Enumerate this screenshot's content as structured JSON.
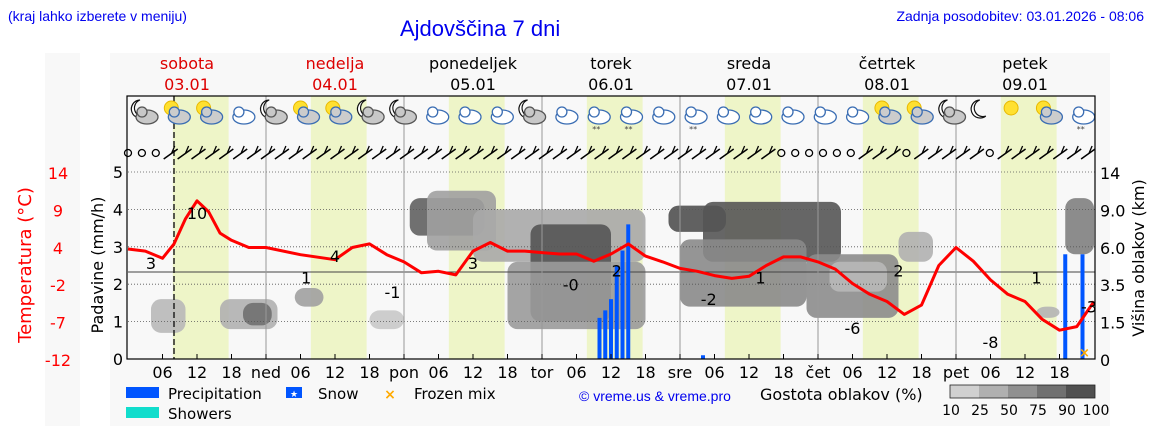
{
  "header": {
    "region_hint": "(kraj lahko izberete v meniju)",
    "title": "Ajdovščina 7 dni",
    "last_update": "Zadnja posodobitev: 03.01.2026 - 08:06"
  },
  "colors": {
    "link_blue": "#0000ee",
    "weekend_red": "#dd0000",
    "temperature": "#ff0000",
    "precipitation": "#0055ff",
    "showers": "#11ddcc",
    "frozen_mix": "#ffaa00",
    "daylight": "#eef5c8",
    "panel_bg": "#f8f8f8"
  },
  "days": [
    {
      "name": "sobota",
      "date": "03.01",
      "weekend": true,
      "short": ""
    },
    {
      "name": "nedelja",
      "date": "04.01",
      "weekend": true,
      "short": "ned"
    },
    {
      "name": "ponedeljek",
      "date": "05.01",
      "weekend": false,
      "short": "pon"
    },
    {
      "name": "torek",
      "date": "06.01",
      "weekend": false,
      "short": "tor"
    },
    {
      "name": "sreda",
      "date": "07.01",
      "weekend": false,
      "short": "sre"
    },
    {
      "name": "četrtek",
      "date": "08.01",
      "weekend": false,
      "short": "čet"
    },
    {
      "name": "petek",
      "date": "09.01",
      "weekend": false,
      "short": "pet"
    }
  ],
  "weather_icons": [
    "night-cloudy",
    "sun-cloud",
    "sun-cloud",
    "cloudy",
    "night-cloudy",
    "sun-cloud",
    "sun-cloud",
    "night-partly",
    "night-cloudy",
    "cloudy",
    "cloudy",
    "cloudy",
    "night-cloudy",
    "cloudy",
    "cloudy-snow",
    "cloudy-snow",
    "cloudy",
    "cloudy-snow",
    "cloudy",
    "cloudy",
    "cloudy",
    "cloudy",
    "cloudy",
    "sun-cloud",
    "sun-cloud",
    "night-cloudy",
    "night-clear",
    "sun",
    "sun-cloud",
    "cloudy-snow"
  ],
  "chart_data": {
    "type": "line",
    "title": "Ajdovščina 7 dni",
    "xlabel": "",
    "x_ticks": [
      "06",
      "12",
      "18",
      "ned",
      "06",
      "12",
      "18",
      "pon",
      "06",
      "12",
      "18",
      "tor",
      "06",
      "12",
      "18",
      "sre",
      "06",
      "12",
      "18",
      "čet",
      "06",
      "12",
      "18",
      "pet",
      "06",
      "12",
      "18"
    ],
    "left_axis_outer": {
      "label": "Temperatura (°C)",
      "ticks": [
        14,
        9,
        4,
        -2,
        -7,
        -12
      ]
    },
    "left_axis_inner": {
      "label": "Padavine (mm/h)",
      "ticks": [
        5,
        4,
        3,
        2,
        1,
        0
      ],
      "ylim": [
        0,
        5
      ]
    },
    "right_axis": {
      "label": "Višina oblakov (km)",
      "ticks": [
        "14",
        "9.0",
        "6.0",
        "3.5",
        "1.5",
        "0"
      ]
    },
    "current_time_marker_hour": 8,
    "series": [
      {
        "name": "Temperatura",
        "unit": "°C",
        "hours": [
          0,
          3,
          6,
          8,
          10,
          12,
          14,
          16,
          18,
          21,
          24,
          30,
          36,
          39,
          42,
          45,
          48,
          51,
          54,
          57,
          60,
          63,
          66,
          69,
          72,
          75,
          78,
          81,
          84,
          87,
          90,
          93,
          96,
          99,
          102,
          105,
          108,
          111,
          114,
          117,
          120,
          123,
          126,
          129,
          132,
          135,
          138,
          141,
          144,
          147,
          150,
          153,
          156,
          159,
          162,
          165,
          168
        ],
        "values": [
          3.3,
          3,
          2,
          4,
          7.5,
          10,
          8.5,
          5.5,
          4.5,
          3.5,
          3.5,
          2.5,
          1.8,
          3.5,
          4,
          2.5,
          1.5,
          0,
          0.2,
          -0.3,
          3,
          4.2,
          3,
          3,
          2.8,
          2.6,
          2.6,
          1.6,
          2.6,
          4,
          2.3,
          1.5,
          0.6,
          0.2,
          -0.4,
          -0.8,
          -0.5,
          1,
          2.2,
          2.2,
          1.5,
          0.5,
          -1.5,
          -3,
          -4,
          -5.8,
          -4.5,
          1,
          3.5,
          1.6,
          -1,
          -3,
          -4,
          -6.5,
          -8,
          -7.5,
          -4
        ]
      },
      {
        "name": "Padavine",
        "unit": "mm/h",
        "hours": [
          82,
          83,
          84,
          85,
          86,
          87,
          100,
          163,
          166
        ],
        "values": [
          1.1,
          1.3,
          1.6,
          2.5,
          2.9,
          3.6,
          0.1,
          2.8,
          2.8
        ]
      }
    ],
    "temperature_annotations": [
      {
        "hour": 4,
        "value": "3"
      },
      {
        "hour": 12,
        "value": "10"
      },
      {
        "hour": 31,
        "value": "1"
      },
      {
        "hour": 36,
        "value": "4"
      },
      {
        "hour": 46,
        "value": "-1"
      },
      {
        "hour": 60,
        "value": "3"
      },
      {
        "hour": 77,
        "value": "-0"
      },
      {
        "hour": 85,
        "value": "2"
      },
      {
        "hour": 101,
        "value": "-2"
      },
      {
        "hour": 110,
        "value": "1"
      },
      {
        "hour": 126,
        "value": "-6"
      },
      {
        "hour": 134,
        "value": "2"
      },
      {
        "hour": 150,
        "value": "-8"
      },
      {
        "hour": 158,
        "value": "1"
      },
      {
        "hour": 168,
        "value": "-3"
      }
    ],
    "legend": [
      {
        "label": "Precipitation",
        "type": "bar",
        "color": "#0055ff"
      },
      {
        "label": "Snow",
        "type": "star",
        "color": "#0055ff"
      },
      {
        "label": "Frozen mix",
        "type": "x",
        "color": "#ffaa00"
      },
      {
        "label": "Showers",
        "type": "bar",
        "color": "#11ddcc"
      }
    ],
    "cloud_density_legend": {
      "label": "Gostota oblakov (%)",
      "ticks": [
        "10",
        "25",
        "50",
        "75",
        "90",
        "100"
      ],
      "colors": [
        "#d0d0d0",
        "#b0b0b0",
        "#909090",
        "#707070",
        "#505050"
      ]
    }
  },
  "footer": {
    "credit": "© vreme.us & vreme.pro"
  }
}
